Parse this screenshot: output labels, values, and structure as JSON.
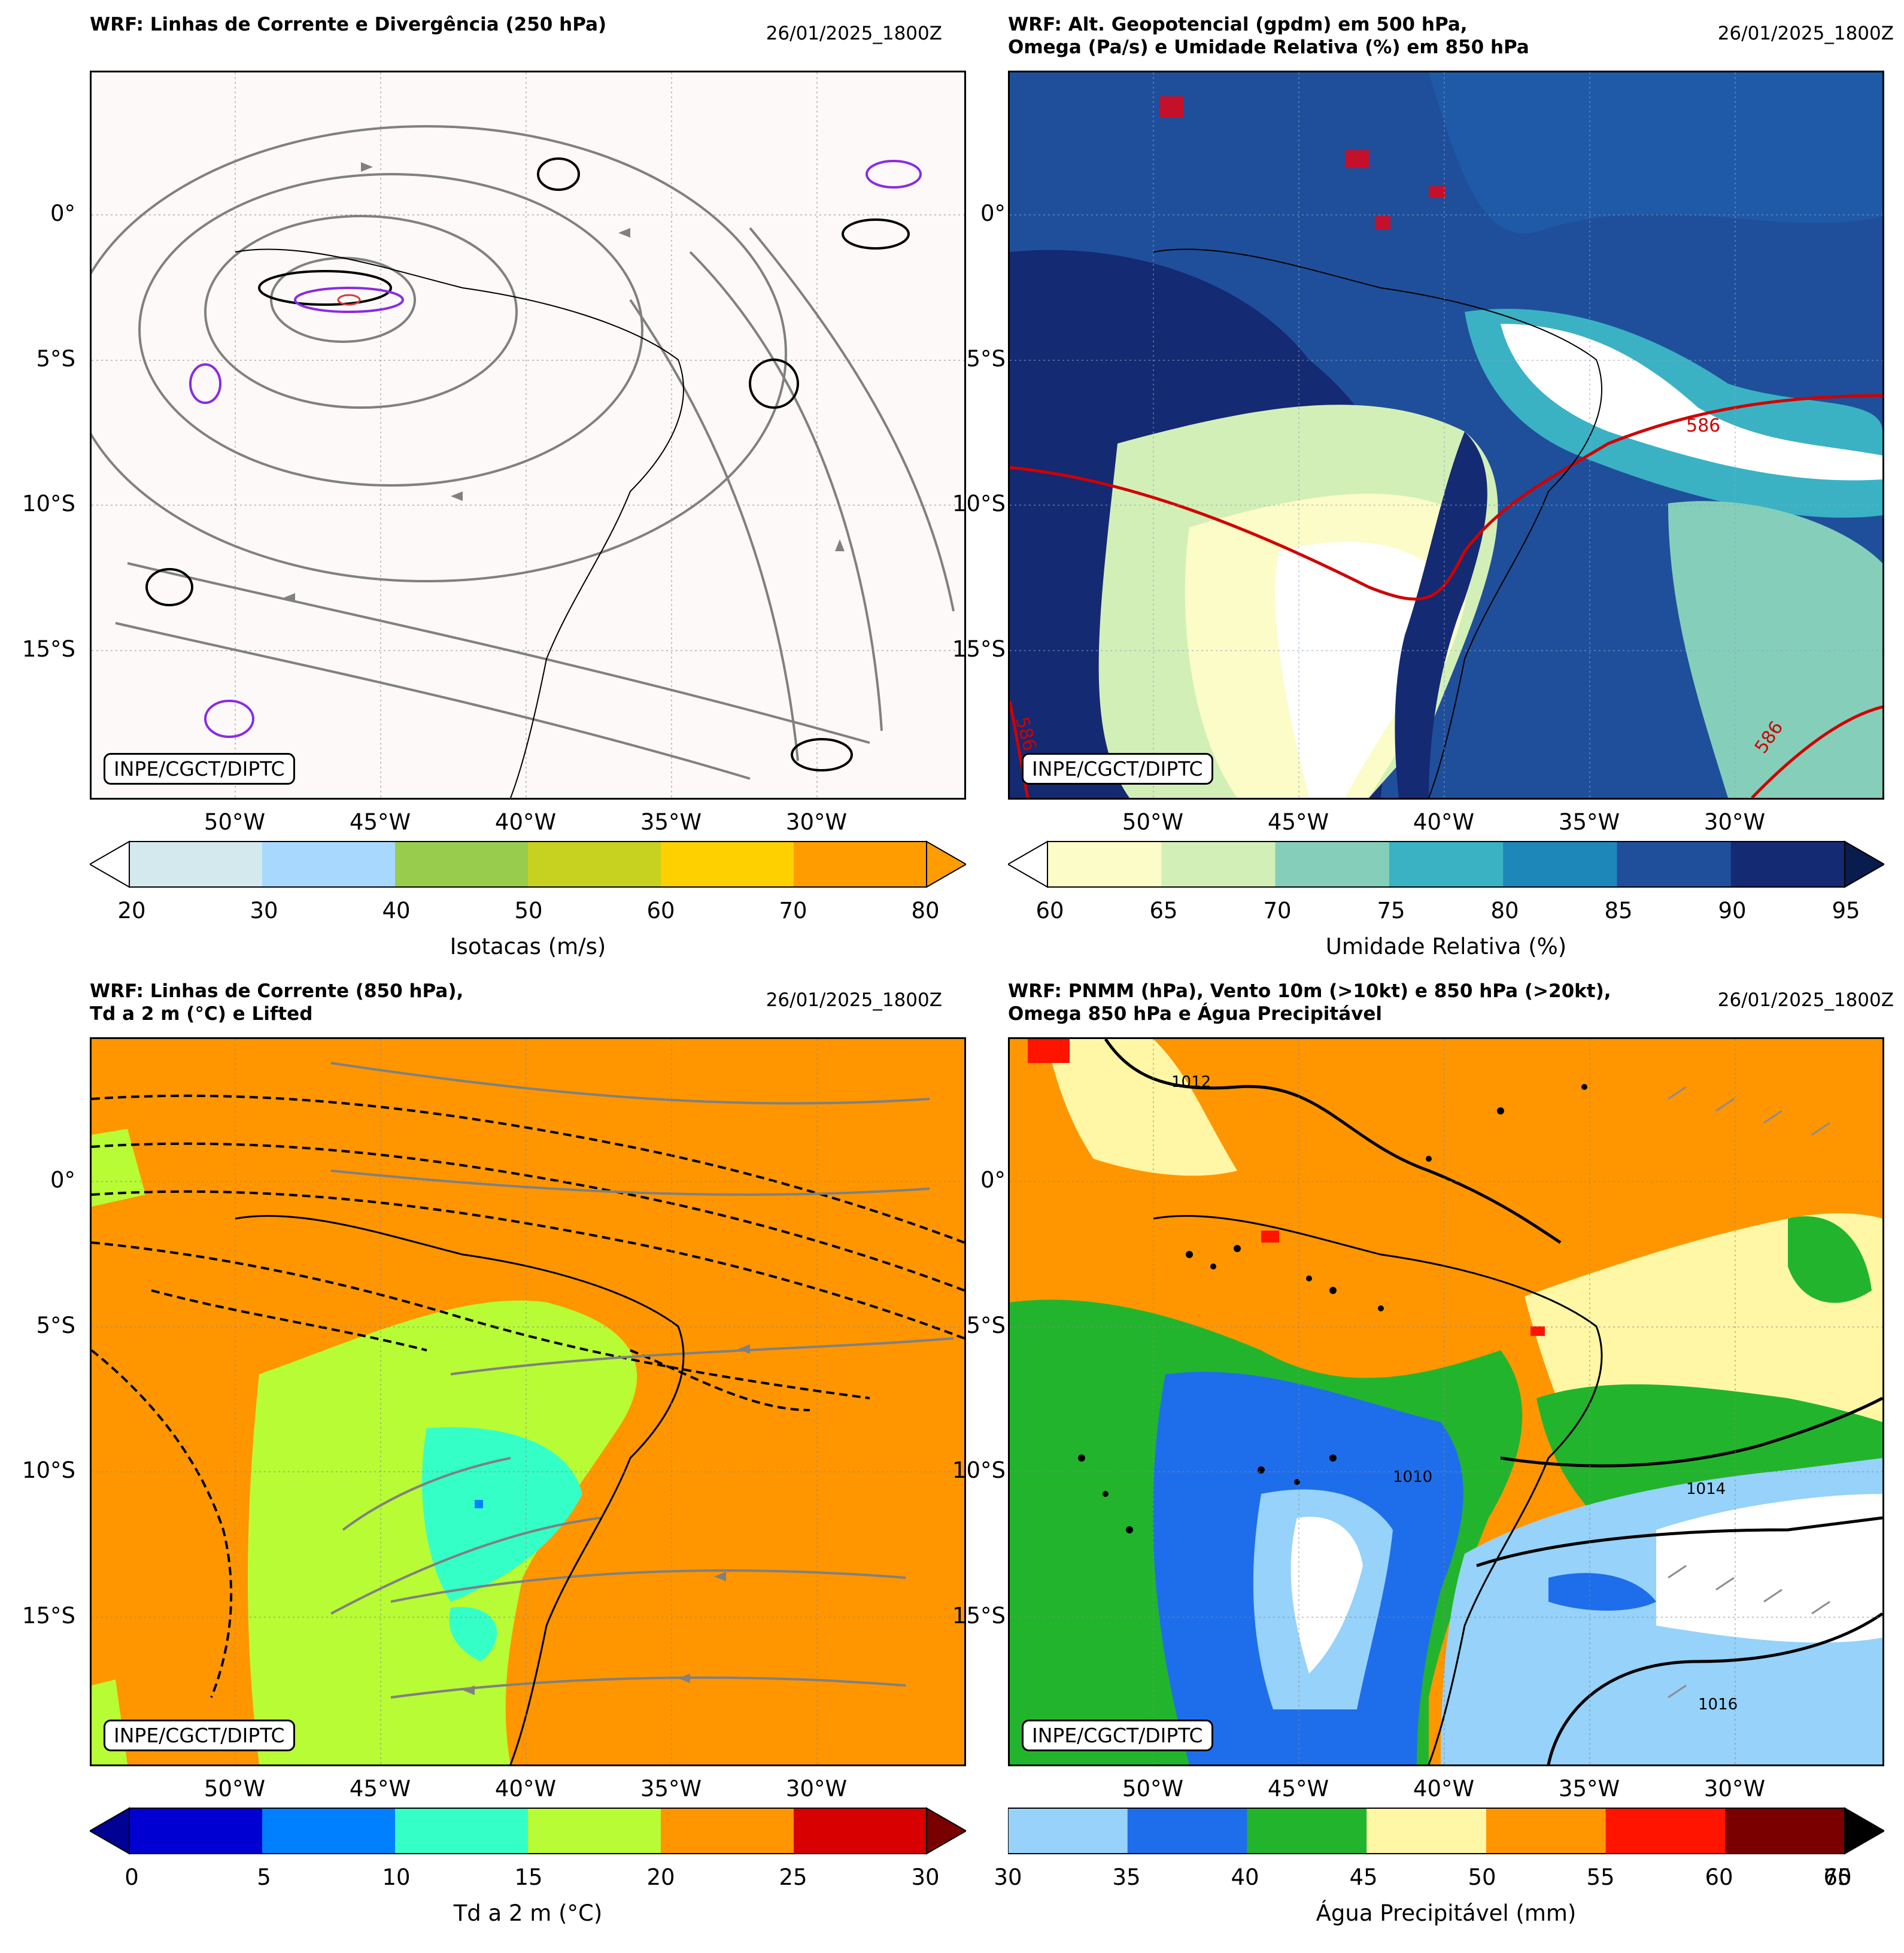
{
  "timestamp": "26/01/2025_1800Z",
  "attribution": "INPE/CGCT/DIPTC",
  "lat_labels": [
    "0°",
    "5°S",
    "10°S",
    "15°S"
  ],
  "lon_labels": [
    "50°W",
    "45°W",
    "40°W",
    "35°W",
    "30°W"
  ],
  "panels": [
    {
      "title": "WRF: Linhas de Corrente e Divergência (250 hPa)",
      "colorbar": {
        "label": "Isotacas (m/s)",
        "ticks": [
          "20",
          "30",
          "40",
          "50",
          "60",
          "70",
          "80"
        ],
        "colors": [
          "#d4e9ee",
          "#a9d8ff",
          "#98cc4d",
          "#c7d11f",
          "#ffd000",
          "#ff9c00"
        ],
        "extend_low": "#ffffff",
        "extend_high": "#ff9c00"
      },
      "background": "#fcf9f8"
    },
    {
      "title": "WRF: Alt. Geopotencial (gpdm) em 500 hPa,\nOmega (Pa/s) e Umidade Relativa (%) em 850 hPa",
      "colorbar": {
        "label": "Umidade Relativa (%)",
        "ticks": [
          "60",
          "65",
          "70",
          "75",
          "80",
          "85",
          "90",
          "95"
        ],
        "colors": [
          "#fbfcc8",
          "#d3efb8",
          "#85cfba",
          "#3ab2c4",
          "#1e87ba",
          "#1f4f9b",
          "#142a72"
        ],
        "extend_low": "#ffffff",
        "extend_high": "#091c4e"
      },
      "contour_labels": [
        "586",
        "586",
        "586"
      ],
      "background": "#1f4f9b"
    },
    {
      "title": "WRF: Linhas de Corrente (850 hPa),\nTd a 2 m (°C) e Lifted",
      "colorbar": {
        "label": "Td a 2 m (°C)",
        "ticks": [
          "0",
          "5",
          "10",
          "15",
          "20",
          "25",
          "30"
        ],
        "colors": [
          "#0000d2",
          "#0080ff",
          "#34ffc7",
          "#b7fc35",
          "#ff9600",
          "#d80000"
        ],
        "extend_low": "#010194",
        "extend_high": "#7a0000"
      },
      "background": "#ff9600"
    },
    {
      "title": "WRF: PNMM (hPa), Vento 10m (>10kt) e 850 hPa (>20kt),\nOmega 850 hPa e Água Precipitável",
      "colorbar": {
        "label": "Água Precipitável (mm)",
        "ticks": [
          "30",
          "35",
          "40",
          "45",
          "50",
          "55",
          "60",
          "65"
        ],
        "overlap_tick": "70",
        "colors": [
          "#96d2fa",
          "#1e6eeb",
          "#23b42d",
          "#fff7a5",
          "#ff9600",
          "#ff1400",
          "#7a0000"
        ],
        "extend_high": "#000000"
      },
      "isobar_labels": [
        "1012",
        "1014",
        "1016",
        "1010"
      ],
      "background": "#ff9600"
    }
  ]
}
